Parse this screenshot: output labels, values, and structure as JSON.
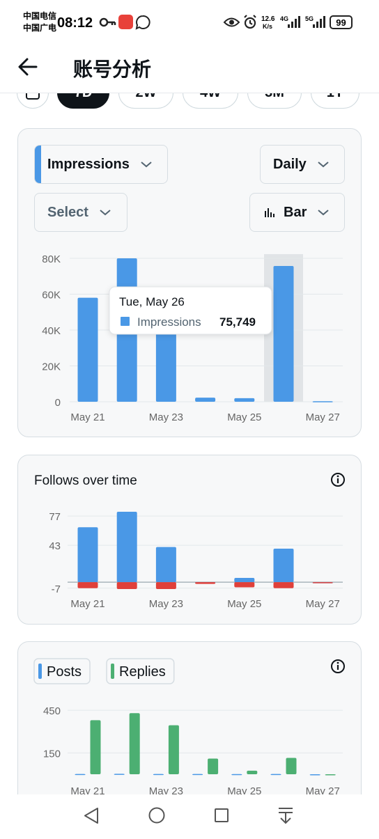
{
  "status_bar": {
    "carrier_1": "中国电信",
    "carrier_2": "中国广电",
    "time": "08:12",
    "speed": "12.6",
    "speed_unit": "K/s",
    "network_1": "4G",
    "network_2": "5G",
    "battery": "99"
  },
  "header": {
    "title": "账号分析"
  },
  "tabs": [
    "7D",
    "2W",
    "4W",
    "3M",
    "1Y"
  ],
  "controls": {
    "metric": "Impressions",
    "interval": "Daily",
    "compare": "Select",
    "chart_type": "Bar"
  },
  "chart_data": [
    {
      "type": "bar",
      "categories": [
        "May 21",
        null,
        "May 23",
        null,
        "May 25",
        null,
        "May 27"
      ],
      "series": [
        {
          "name": "Impressions",
          "color": "#4a98e6",
          "values": [
            58000,
            80000,
            64000,
            2300,
            2000,
            75749,
            300
          ],
          "value_labels": [
            null,
            null,
            null,
            null,
            null,
            "75,749",
            null
          ]
        }
      ],
      "ylim": [
        0,
        80000
      ],
      "yticks": [
        0,
        {
          "value": 20000,
          "label": "20K"
        },
        {
          "value": 40000,
          "label": "40K"
        },
        {
          "value": 60000,
          "label": "60K"
        },
        {
          "value": 80000,
          "label": "80K"
        }
      ],
      "grid": true,
      "tooltip_title": "Tue, May 26"
    },
    {
      "type": "bar",
      "stacked": true,
      "title": "Follows over time",
      "categories": [
        "May 21",
        null,
        "May 23",
        null,
        "May 25",
        null,
        "May 27"
      ],
      "series": [
        {
          "color": "#4a98e6",
          "values": [
            64,
            82,
            41,
            0,
            5,
            39,
            0
          ]
        },
        {
          "color": "#e0403a",
          "values": [
            -7,
            -8,
            -8,
            -2,
            -6,
            -7,
            0
          ]
        }
      ],
      "ylim": [
        -8,
        82
      ],
      "yticks": [
        -7,
        43,
        77
      ],
      "grid": true
    },
    {
      "type": "bar",
      "grouped": true,
      "categories": [
        "May 21",
        null,
        "May 23",
        null,
        "May 25",
        null,
        "May 27"
      ],
      "series": [
        {
          "name": "Posts",
          "color": "#4a98e6",
          "values": [
            2,
            3,
            2,
            2,
            1,
            2,
            0
          ]
        },
        {
          "name": "Replies",
          "color": "#4caf72",
          "values": [
            380,
            430,
            345,
            110,
            25,
            115,
            0
          ]
        }
      ],
      "ylim": [
        0,
        480
      ],
      "yticks": [
        150,
        450
      ],
      "grid": true,
      "legend": "top-left"
    }
  ]
}
